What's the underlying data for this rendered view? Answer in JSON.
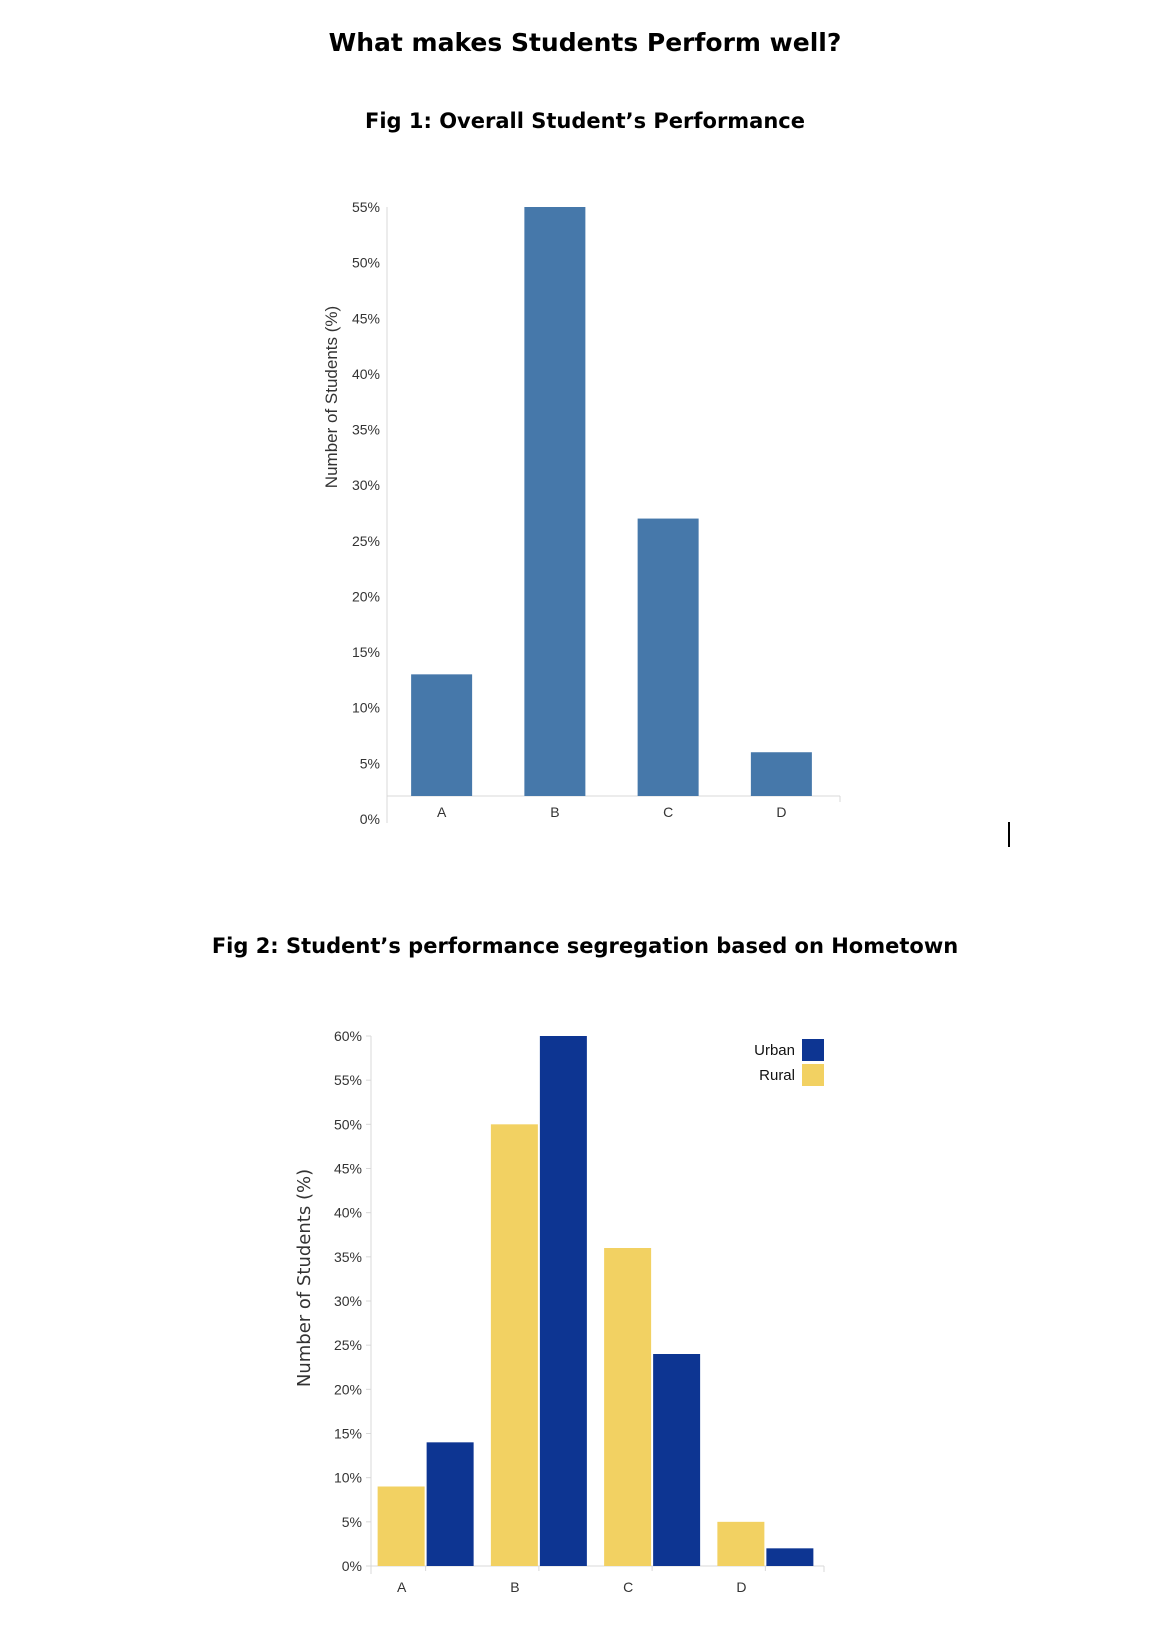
{
  "page": {
    "title": "What makes Students Perform well?"
  },
  "chart_data": [
    {
      "type": "bar",
      "title": "Fig 1: Overall Student’s Performance",
      "categories": [
        "A",
        "B",
        "C",
        "D"
      ],
      "values": [
        13,
        55,
        27,
        6
      ],
      "ylabel": "Number of Students (%)",
      "xlabel": "",
      "ylim": [
        0,
        55
      ],
      "yticks": [
        "0%",
        "5%",
        "10%",
        "15%",
        "20%",
        "25%",
        "30%",
        "35%",
        "40%",
        "45%",
        "50%",
        "55%"
      ],
      "grid": false,
      "colors": {
        "bar": "#4678aa"
      }
    },
    {
      "type": "bar",
      "title": "Fig 2: Student’s performance segregation based on Hometown",
      "categories": [
        "A",
        "B",
        "C",
        "D"
      ],
      "series": [
        {
          "name": "Rural",
          "values": [
            9,
            50,
            36,
            5
          ],
          "color": "#f2d162"
        },
        {
          "name": "Urban",
          "values": [
            14,
            60,
            24,
            2
          ],
          "color": "#0d3592"
        }
      ],
      "ylabel": "Number of Students (%)",
      "xlabel": "",
      "ylim": [
        0,
        60
      ],
      "yticks": [
        "0%",
        "5%",
        "10%",
        "15%",
        "20%",
        "25%",
        "30%",
        "35%",
        "40%",
        "45%",
        "50%",
        "55%",
        "60%"
      ],
      "grid": false,
      "legend": {
        "position": "top-right",
        "items": [
          "Urban",
          "Rural"
        ]
      }
    }
  ]
}
